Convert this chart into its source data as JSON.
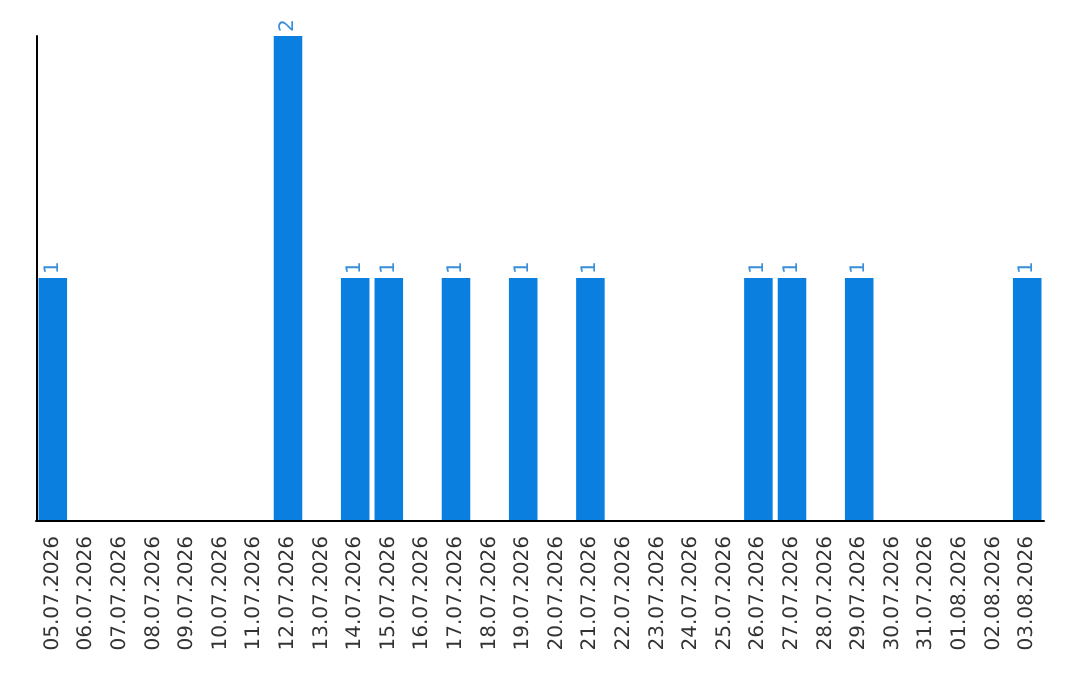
{
  "chart_data": {
    "type": "bar",
    "categories": [
      "05.07.2026",
      "06.07.2026",
      "07.07.2026",
      "08.07.2026",
      "09.07.2026",
      "10.07.2026",
      "11.07.2026",
      "12.07.2026",
      "13.07.2026",
      "14.07.2026",
      "15.07.2026",
      "16.07.2026",
      "17.07.2026",
      "18.07.2026",
      "19.07.2026",
      "20.07.2026",
      "21.07.2026",
      "22.07.2026",
      "23.07.2026",
      "24.07.2026",
      "25.07.2026",
      "26.07.2026",
      "27.07.2026",
      "28.07.2026",
      "29.07.2026",
      "30.07.2026",
      "31.07.2026",
      "01.08.2026",
      "02.08.2026",
      "03.08.2026"
    ],
    "values": [
      1,
      0,
      0,
      0,
      0,
      0,
      0,
      2,
      0,
      1,
      1,
      0,
      1,
      0,
      1,
      0,
      1,
      0,
      0,
      0,
      0,
      1,
      1,
      0,
      1,
      0,
      0,
      0,
      0,
      1
    ],
    "value_labels": [
      "1",
      null,
      null,
      null,
      null,
      null,
      null,
      "2",
      null,
      "1",
      "1",
      null,
      "1",
      null,
      "1",
      null,
      "1",
      null,
      null,
      null,
      null,
      "1",
      "1",
      null,
      "1",
      null,
      null,
      null,
      null,
      "1"
    ],
    "color": "#0a7fe0",
    "grid": false,
    "tick_labels": "x"
  }
}
